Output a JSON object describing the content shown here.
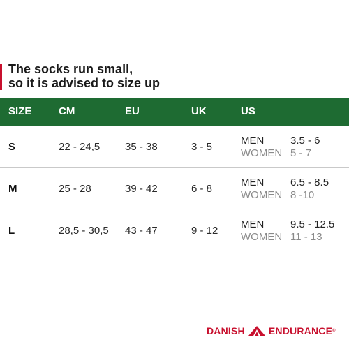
{
  "notice": {
    "line1": "The socks run small,",
    "line2": "so it is advised to size up"
  },
  "table": {
    "headers": [
      "SIZE",
      "CM",
      "EU",
      "UK",
      "US"
    ],
    "rows": [
      {
        "size": "S",
        "cm": "22 - 24,5",
        "eu": "35 - 38",
        "uk": "3 - 5",
        "men_label": "MEN",
        "men_value": "3.5 - 6",
        "women_label": "WOMEN",
        "women_value": "5 - 7"
      },
      {
        "size": "M",
        "cm": "25 - 28",
        "eu": "39 - 42",
        "uk": "6 - 8",
        "men_label": "MEN",
        "men_value": "6.5 - 8.5",
        "women_label": "WOMEN",
        "women_value": "8 -10"
      },
      {
        "size": "L",
        "cm": "28,5 - 30,5",
        "eu": "43 - 47",
        "uk": "9 - 12",
        "men_label": "MEN",
        "men_value": "9.5 - 12.5",
        "women_label": "WOMEN",
        "women_value": "11 - 13"
      }
    ]
  },
  "brand": {
    "left": "DANISH",
    "right": "ENDURANCE",
    "mark": "®"
  },
  "colors": {
    "header_green": "#1e6b32",
    "accent_red": "#c8102e"
  }
}
